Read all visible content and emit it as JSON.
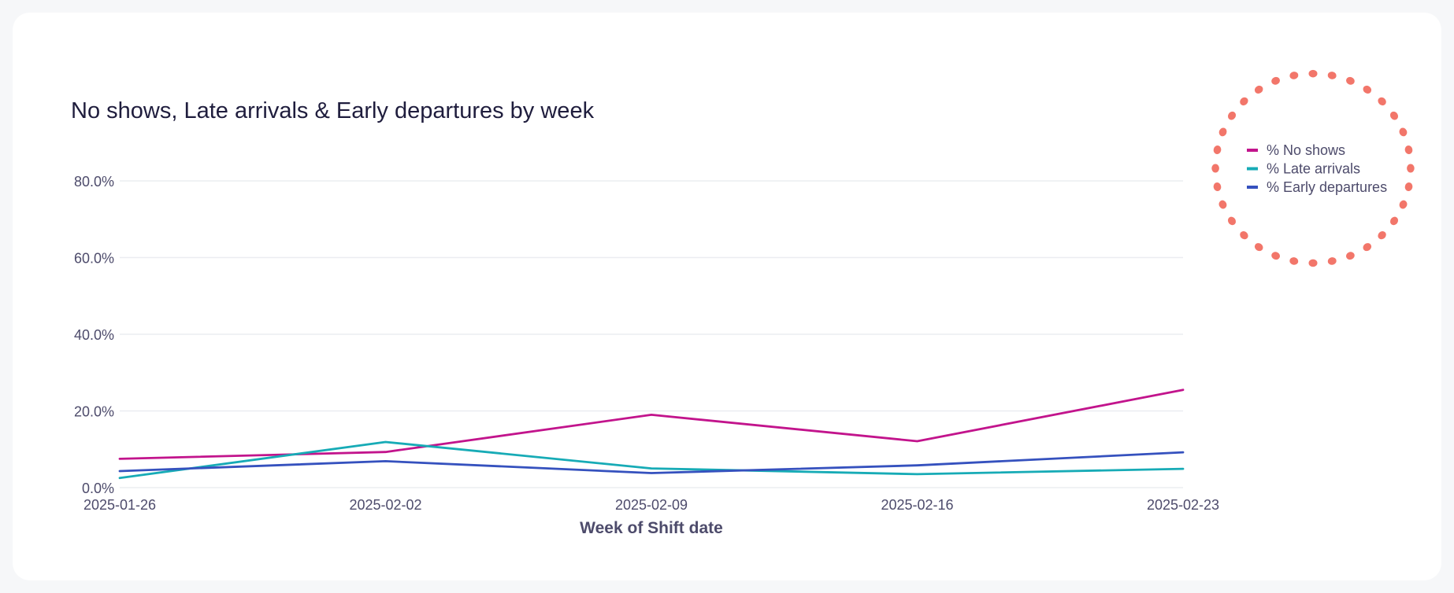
{
  "chart_data": {
    "type": "line",
    "title": "No shows, Late arrivals & Early departures by week",
    "xlabel": "Week of Shift date",
    "ylabel": "",
    "x": [
      "2025-01-26",
      "2025-02-02",
      "2025-02-09",
      "2025-02-16",
      "2025-02-23"
    ],
    "ylim": [
      0,
      80
    ],
    "yticks": [
      0,
      20,
      40,
      60,
      80
    ],
    "ytick_labels": [
      "0.0%",
      "20.0%",
      "40.0%",
      "60.0%",
      "80.0%"
    ],
    "grid": true,
    "legend_position": "top-right",
    "series": [
      {
        "name": "% No shows",
        "color": "#c2148c",
        "values": [
          7.5,
          9.3,
          19.0,
          12.1,
          25.5
        ]
      },
      {
        "name": "% Late arrivals",
        "color": "#17abb6",
        "values": [
          2.5,
          11.9,
          5.0,
          3.5,
          4.9
        ]
      },
      {
        "name": "% Early departures",
        "color": "#3551be",
        "values": [
          4.3,
          6.9,
          3.8,
          5.8,
          9.2
        ]
      }
    ]
  },
  "colors": {
    "legend_highlight": "#f2766a",
    "grid": "#ebedf1"
  }
}
